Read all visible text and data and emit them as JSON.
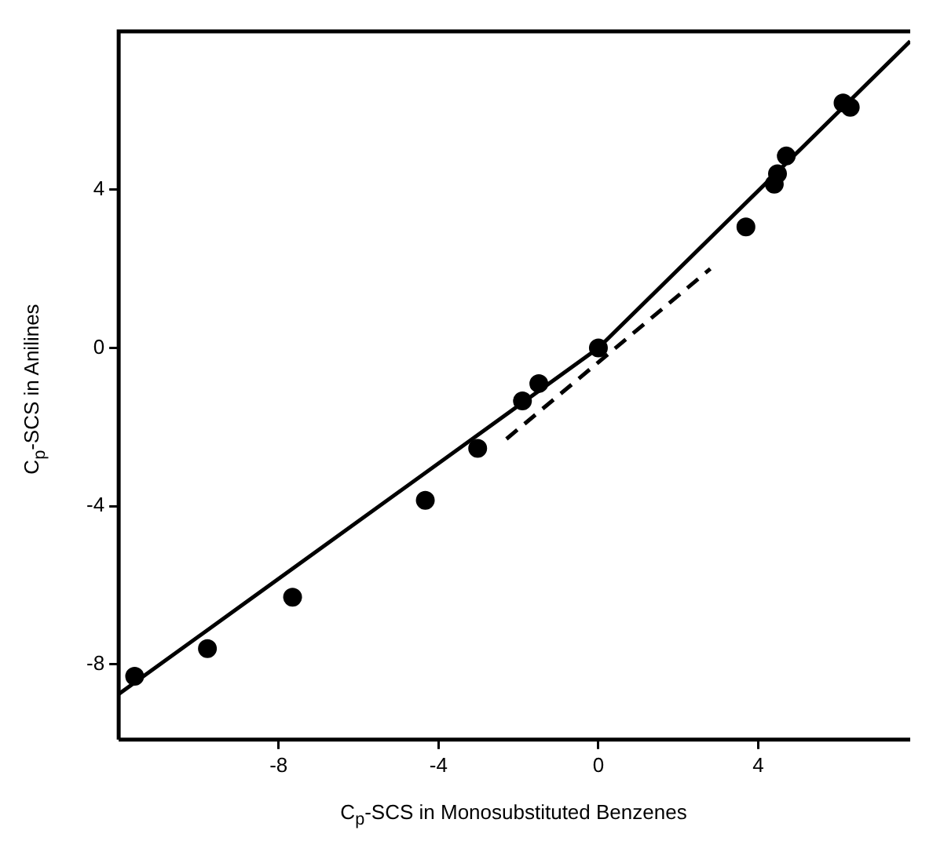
{
  "chart_data": {
    "type": "scatter",
    "xlabel": "C$_{p}$-SCS in Monosubstituted Benzenes",
    "ylabel": "C$_{p}$-SCS in Anilines",
    "xlim": [
      -12,
      7.8
    ],
    "ylim": [
      -9.9,
      8
    ],
    "xticks": [
      -8,
      -4,
      0,
      4
    ],
    "yticks": [
      -8,
      -4,
      0,
      4
    ],
    "grid": false,
    "legend": false,
    "series": [
      {
        "color": "#000000",
        "marker": "circle",
        "x": [
          -11.6,
          -9.78,
          -7.65,
          -4.33,
          -3.02,
          -1.9,
          -1.49,
          0,
          3.69,
          4.4,
          4.48,
          4.7,
          6.12,
          6.3
        ],
        "values": [
          -8.3,
          -7.6,
          -6.3,
          -3.85,
          -2.54,
          -1.34,
          -0.9,
          0,
          3.06,
          4.14,
          4.4,
          4.85,
          6.19,
          6.08
        ]
      },
      {
        "type": "line",
        "color": "#000000",
        "marker": "none",
        "line_style": "solid",
        "x": [
          -12,
          0,
          7.8
        ],
        "values": [
          -8.75,
          0,
          7.75
        ]
      },
      {
        "type": "line",
        "color": "#000000",
        "marker": "none",
        "line_style": "dashed",
        "x": [
          -2.3,
          2.8
        ],
        "values": [
          -2.3,
          2.0
        ]
      }
    ]
  }
}
